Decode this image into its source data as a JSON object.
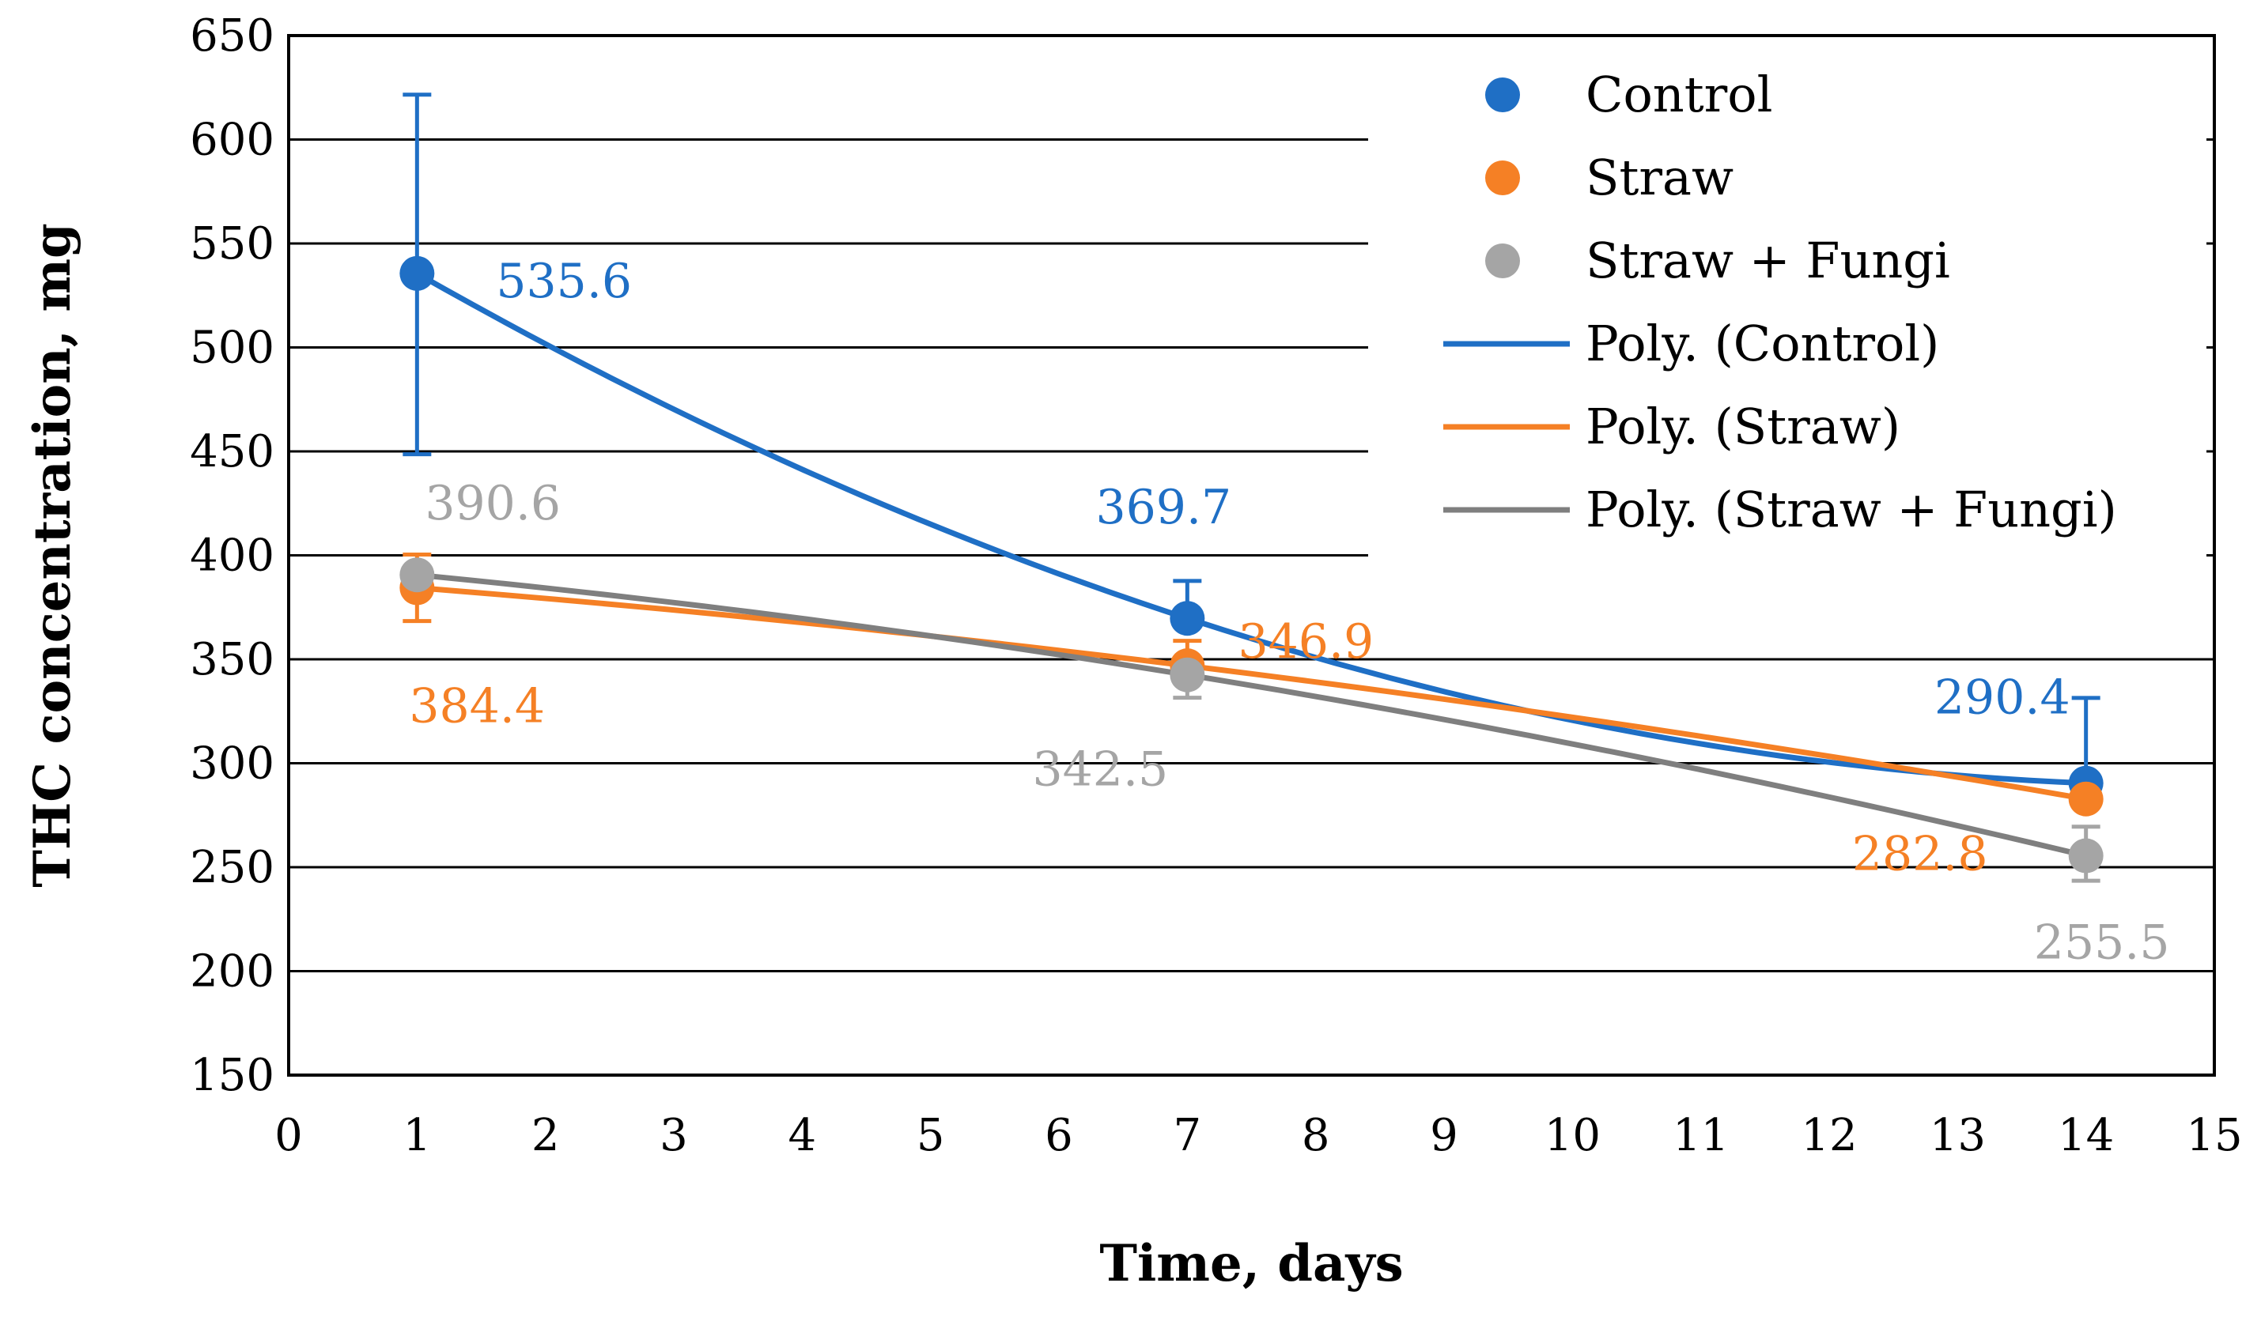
{
  "chart_data": {
    "type": "scatter",
    "xlabel": "Time, days",
    "ylabel": "THC concentration, mg",
    "xlim": [
      0,
      15
    ],
    "ylim": [
      150,
      650
    ],
    "xticks": [
      "0",
      "1",
      "2",
      "3",
      "4",
      "5",
      "6",
      "7",
      "8",
      "9",
      "10",
      "11",
      "12",
      "13",
      "14",
      "15"
    ],
    "yticks": [
      "150",
      "200",
      "250",
      "300",
      "350",
      "400",
      "450",
      "500",
      "550",
      "600",
      "650"
    ],
    "grid": "horizontal",
    "legend_position": "top-right",
    "series": [
      {
        "name": "Control",
        "trend_name": "Poly. (Control)",
        "color": "#1f6fc5",
        "x": [
          1,
          7,
          14
        ],
        "values": [
          535.6,
          369.7,
          290.4
        ],
        "labels": [
          "535.6",
          "369.7",
          "290.4"
        ],
        "error_plus": [
          86,
          18,
          41
        ],
        "error_minus": [
          87,
          0,
          0
        ]
      },
      {
        "name": "Straw",
        "trend_name": "Poly. (Straw)",
        "color": "#f58025",
        "x": [
          1,
          7,
          14
        ],
        "values": [
          384.4,
          346.9,
          282.8
        ],
        "labels": [
          "384.4",
          "346.9",
          "282.8"
        ],
        "error_plus": [
          16,
          12,
          0
        ],
        "error_minus": [
          16,
          0,
          0
        ]
      },
      {
        "name": "Straw + Fungi",
        "trend_name": "Poly. (Straw + Fungi)",
        "color": "#a5a5a5",
        "trend_color": "#7f7f7f",
        "x": [
          1,
          7,
          14
        ],
        "values": [
          390.6,
          342.5,
          255.5
        ],
        "labels": [
          "390.6",
          "342.5",
          "255.5"
        ],
        "error_plus": [
          0,
          0,
          14
        ],
        "error_minus": [
          0,
          11,
          12
        ]
      }
    ]
  }
}
